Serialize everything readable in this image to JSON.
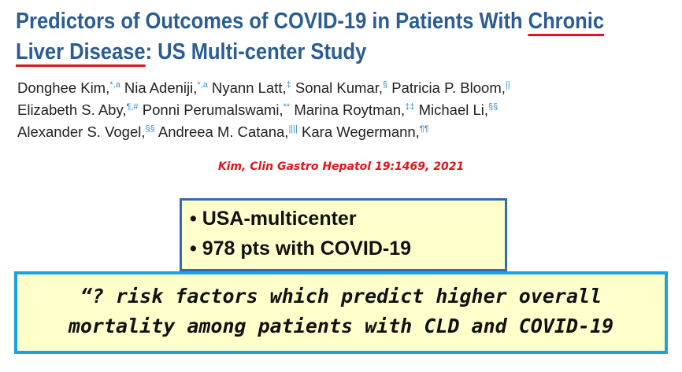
{
  "title": {
    "part1": "Predictors of Outcomes of COVID-19 in Patients With ",
    "underlined1": "Chronic",
    "underlined2": "Liver Disease",
    "part2": ": US Multi-center Study"
  },
  "authors": [
    {
      "name": "Donghee Kim,",
      "sup": "*,a"
    },
    {
      "name": "Nia Adeniji,",
      "sup": "*,a"
    },
    {
      "name": "Nyann Latt,",
      "sup": "‡"
    },
    {
      "name": "Sonal Kumar,",
      "sup": "§"
    },
    {
      "name": "Patricia P. Bloom,",
      "sup": "||"
    },
    {
      "name": "Elizabeth S. Aby,",
      "sup": "¶,#"
    },
    {
      "name": "Ponni Perumalswami,",
      "sup": "**"
    },
    {
      "name": "Marina Roytman,",
      "sup": "‡‡"
    },
    {
      "name": "Michael Li,",
      "sup": "§§"
    },
    {
      "name": "Alexander S. Vogel,",
      "sup": "§§"
    },
    {
      "name": "Andreea M. Catana,",
      "sup": "||||"
    },
    {
      "name": "Kara Wegermann,",
      "sup": "¶¶"
    }
  ],
  "citation": "Kim, Clin Gastro Hepatol 19:1469, 2021",
  "bullets": [
    "• USA-multicenter",
    "• 978 pts with COVID-19"
  ],
  "question": {
    "line1": "“? risk factors which predict higher overall",
    "line2": "mortality among patients with CLD and COVID-19"
  }
}
